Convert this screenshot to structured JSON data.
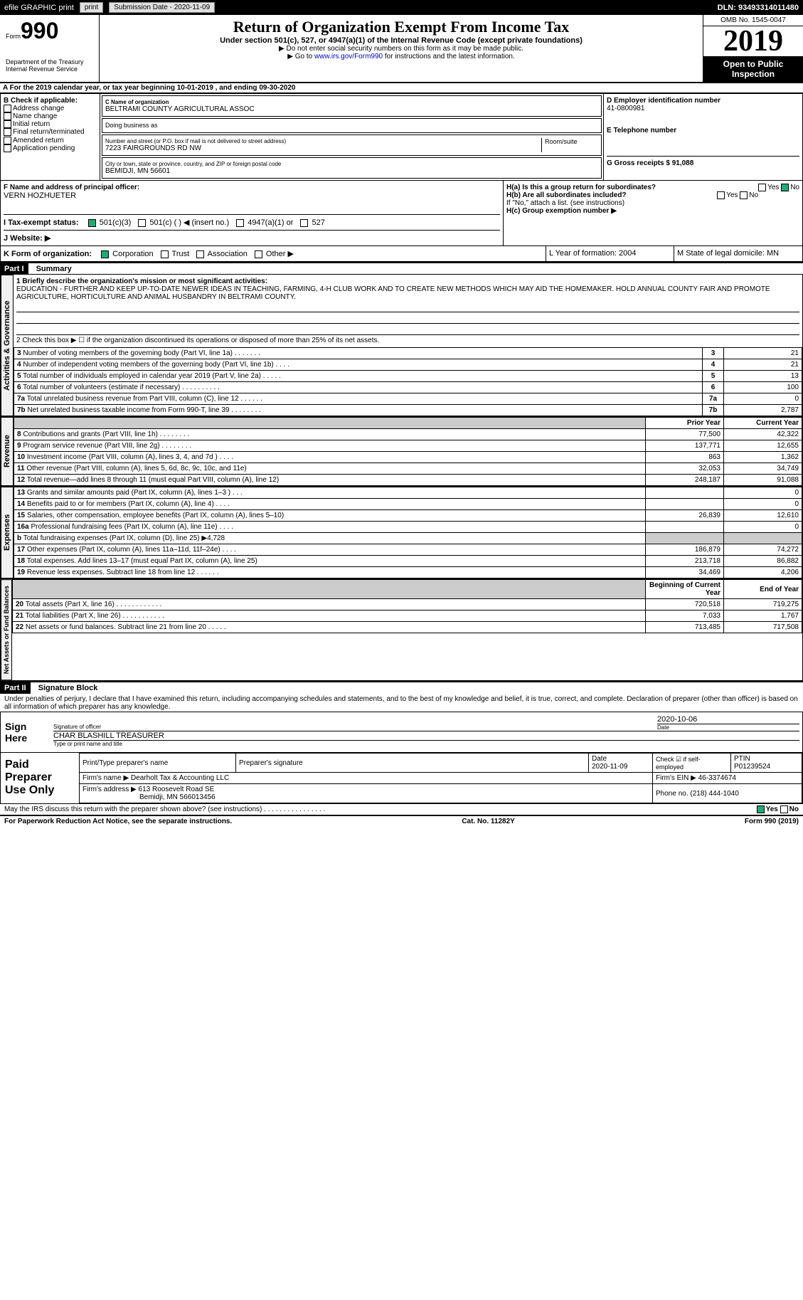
{
  "topbar": {
    "efile": "efile GRAPHIC print",
    "submission": "Submission Date - 2020-11-09",
    "dln": "DLN: 93493314011480"
  },
  "header": {
    "form": "Form",
    "form_no": "990",
    "dept": "Department of the Treasury\nInternal Revenue Service",
    "title": "Return of Organization Exempt From Income Tax",
    "subtitle": "Under section 501(c), 527, or 4947(a)(1) of the Internal Revenue Code (except private foundations)",
    "note1": "▶ Do not enter social security numbers on this form as it may be made public.",
    "note2_pre": "▶ Go to ",
    "note2_link": "www.irs.gov/Form990",
    "note2_post": " for instructions and the latest information.",
    "omb": "OMB No. 1545-0047",
    "year": "2019",
    "open": "Open to Public Inspection"
  },
  "sectionA": {
    "a_line": "A For the 2019 calendar year, or tax year beginning 10-01-2019    , and ending 09-30-2020",
    "b_label": "B Check if applicable:",
    "b_items": [
      "Address change",
      "Name change",
      "Initial return",
      "Final return/terminated",
      "Amended return",
      "Application pending"
    ],
    "c_label": "C Name of organization",
    "c_name": "BELTRAMI COUNTY AGRICULTURAL ASSOC",
    "dba": "Doing business as",
    "addr_label": "Number and street (or P.O. box if mail is not delivered to street address)",
    "addr": "7223 FAIRGROUNDS RD NW",
    "room": "Room/suite",
    "city_label": "City or town, state or province, country, and ZIP or foreign postal code",
    "city": "BEMIDJI, MN  56601",
    "d_label": "D Employer identification number",
    "d_ein": "41-0800981",
    "e_label": "E Telephone number",
    "g_label": "G Gross receipts $ 91,088",
    "f_label": "F Name and address of principal officer:",
    "f_name": "VERN HOZHUETER",
    "ha": "H(a) Is this a group return for subordinates?",
    "hb": "H(b) Are all subordinates included?",
    "hb_note": "If \"No,\" attach a list. (see instructions)",
    "hc": "H(c) Group exemption number ▶",
    "yes": "Yes",
    "no": "No",
    "i_label": "I    Tax-exempt status:",
    "i_opts": [
      "501(c)(3)",
      "501(c) (  ) ◀ (insert no.)",
      "4947(a)(1) or",
      "527"
    ],
    "j_label": "J    Website: ▶",
    "k_label": "K Form of organization:",
    "k_opts": [
      "Corporation",
      "Trust",
      "Association",
      "Other ▶"
    ],
    "l_label": "L Year of formation: 2004",
    "m_label": "M State of legal domicile: MN"
  },
  "part1": {
    "label": "Part I",
    "title": "Summary",
    "mission_label": "1  Briefly describe the organization's mission or most significant activities:",
    "mission": "EDUCATION - FURTHER AND KEEP UP-TO-DATE NEWER IDEAS IN TEACHING, FARMING, 4-H CLUB WORK AND TO CREATE NEW METHODS WHICH MAY AID THE HOMEMAKER. HOLD ANNUAL COUNTY FAIR AND PROMOTE AGRICULTURE, HORTICULTURE AND ANIMAL HUSBANDRY IN BELTRAMI COUNTY.",
    "line2": "2   Check this box ▶ ☐ if the organization discontinued its operations or disposed of more than 25% of its net assets.",
    "gov_label": "Activities & Governance",
    "gov_lines": [
      {
        "n": "3",
        "t": "Number of voting members of the governing body (Part VI, line 1a)   .    .    .    .    .    .    .",
        "v": "21"
      },
      {
        "n": "4",
        "t": "Number of independent voting members of the governing body (Part VI, line 1b)   .    .    .    .",
        "v": "21"
      },
      {
        "n": "5",
        "t": "Total number of individuals employed in calendar year 2019 (Part V, line 2a)   .    .    .    .    .",
        "v": "13"
      },
      {
        "n": "6",
        "t": "Total number of volunteers (estimate if necessary)   .    .    .    .    .    .    .    .    .    .",
        "v": "100"
      },
      {
        "n": "7a",
        "t": "Total unrelated business revenue from Part VIII, column (C), line 12   .    .    .    .    .    .",
        "v": "0"
      },
      {
        "n": "7b",
        "t": "Net unrelated business taxable income from Form 990-T, line 39   .    .    .    .    .    .    .    .",
        "v": "2,787"
      }
    ],
    "rev_label": "Revenue",
    "col_prior": "Prior Year",
    "col_current": "Current Year",
    "rev_lines": [
      {
        "n": "8",
        "t": "Contributions and grants (Part VIII, line 1h)   .    .    .    .    .    .    .    .",
        "p": "77,500",
        "c": "42,322"
      },
      {
        "n": "9",
        "t": "Program service revenue (Part VIII, line 2g)   .    .    .    .    .    .    .    .",
        "p": "137,771",
        "c": "12,655"
      },
      {
        "n": "10",
        "t": "Investment income (Part VIII, column (A), lines 3, 4, and 7d )   .    .    .    .",
        "p": "863",
        "c": "1,362"
      },
      {
        "n": "11",
        "t": "Other revenue (Part VIII, column (A), lines 5, 6d, 8c, 9c, 10c, and 11e)",
        "p": "32,053",
        "c": "34,749"
      },
      {
        "n": "12",
        "t": "Total revenue—add lines 8 through 11 (must equal Part VIII, column (A), line 12)",
        "p": "248,187",
        "c": "91,088"
      }
    ],
    "exp_label": "Expenses",
    "exp_lines": [
      {
        "n": "13",
        "t": "Grants and similar amounts paid (Part IX, column (A), lines 1–3 )  .    .    .",
        "p": "",
        "c": "0"
      },
      {
        "n": "14",
        "t": "Benefits paid to or for members (Part IX, column (A), line 4)   .    .    .    .",
        "p": "",
        "c": "0"
      },
      {
        "n": "15",
        "t": "Salaries, other compensation, employee benefits (Part IX, column (A), lines 5–10)",
        "p": "26,839",
        "c": "12,610"
      },
      {
        "n": "16a",
        "t": "Professional fundraising fees (Part IX, column (A), line 11e)   .    .    .    .",
        "p": "",
        "c": "0"
      },
      {
        "n": "b",
        "t": "Total fundraising expenses (Part IX, column (D), line 25) ▶4,728",
        "p": "grey",
        "c": "grey"
      },
      {
        "n": "17",
        "t": "Other expenses (Part IX, column (A), lines 11a–11d, 11f–24e)   .    .    .    .",
        "p": "186,879",
        "c": "74,272"
      },
      {
        "n": "18",
        "t": "Total expenses. Add lines 13–17 (must equal Part IX, column (A), line 25)",
        "p": "213,718",
        "c": "86,882"
      },
      {
        "n": "19",
        "t": "Revenue less expenses. Subtract line 18 from line 12   .    .    .    .    .    .",
        "p": "34,469",
        "c": "4,206"
      }
    ],
    "na_label": "Net Assets or Fund Balances",
    "col_begin": "Beginning of Current Year",
    "col_end": "End of Year",
    "na_lines": [
      {
        "n": "20",
        "t": "Total assets (Part X, line 16)   .    .    .    .    .    .    .    .    .    .    .    .",
        "p": "720,518",
        "c": "719,275"
      },
      {
        "n": "21",
        "t": "Total liabilities (Part X, line 26)   .    .    .    .    .    .    .    .    .    .    .",
        "p": "7,033",
        "c": "1,767"
      },
      {
        "n": "22",
        "t": "Net assets or fund balances. Subtract line 21 from line 20   .    .    .    .    .",
        "p": "713,485",
        "c": "717,508"
      }
    ]
  },
  "part2": {
    "label": "Part II",
    "title": "Signature Block",
    "perjury": "Under penalties of perjury, I declare that I have examined this return, including accompanying schedules and statements, and to the best of my knowledge and belief, it is true, correct, and complete. Declaration of preparer (other than officer) is based on all information of which preparer has any knowledge.",
    "sign_here": "Sign Here",
    "sig_officer": "Signature of officer",
    "sig_date": "2020-10-06",
    "date_lbl": "Date",
    "officer_name": "CHAR BLASHILL TREASURER",
    "type_name": "Type or print name and title",
    "paid": "Paid Preparer Use Only",
    "prep_name_lbl": "Print/Type preparer's name",
    "prep_sig_lbl": "Preparer's signature",
    "prep_date_lbl": "Date",
    "prep_date": "2020-11-09",
    "check_self": "Check ☑ if self-employed",
    "ptin_lbl": "PTIN",
    "ptin": "P01239524",
    "firm_name_lbl": "Firm's name    ▶",
    "firm_name": "Dearholt Tax & Accounting LLC",
    "firm_ein_lbl": "Firm's EIN ▶",
    "firm_ein": "46-3374674",
    "firm_addr_lbl": "Firm's address ▶",
    "firm_addr": "613 Roosevelt Road SE",
    "firm_city": "Bemidji, MN  566013456",
    "phone_lbl": "Phone no.",
    "phone": "(218) 444-1040",
    "discuss": "May the IRS discuss this return with the preparer shown above? (see instructions)   .    .    .    .    .    .    .    .    .    .    .    .    .    .    .    ."
  },
  "footer": {
    "pra": "For Paperwork Reduction Act Notice, see the separate instructions.",
    "cat": "Cat. No. 11282Y",
    "form": "Form 990 (2019)"
  }
}
